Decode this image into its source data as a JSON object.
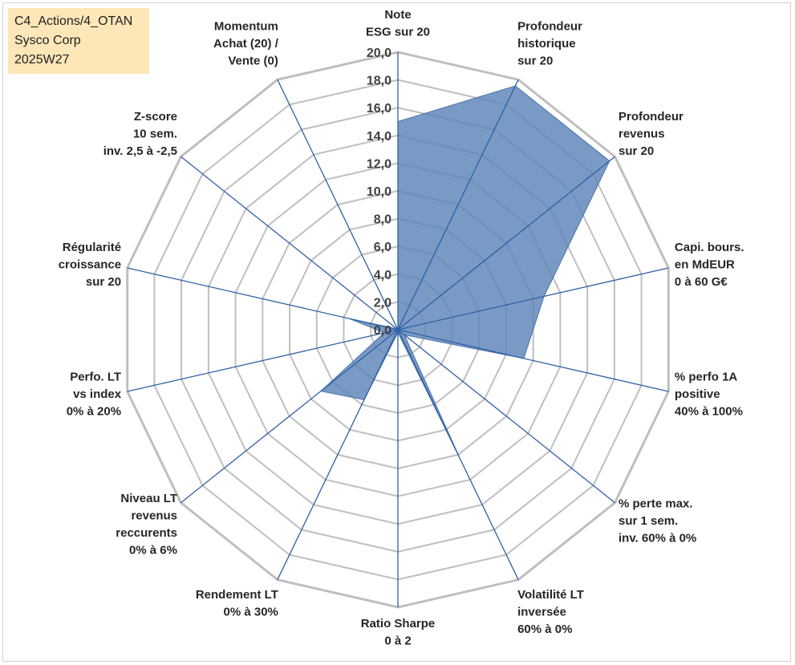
{
  "header": {
    "lines": [
      "C4_Actions/4_OTAN",
      "Sysco Corp",
      "2025W27"
    ]
  },
  "colors": {
    "fill": "#5b84b8",
    "fill_stroke": "#4a74ab",
    "spoke": "#2f5fa7",
    "grid": "#bfbfbf",
    "info_background": "#fde6b8"
  },
  "chart_data": {
    "type": "radar",
    "title": "",
    "rlim": [
      0,
      20
    ],
    "tick_step": 2,
    "tick_labels": [
      "0,0",
      "2,0",
      "4,0",
      "6,0",
      "8,0",
      "10,0",
      "12,0",
      "14,0",
      "16,0",
      "18,0",
      "20,0"
    ],
    "grid": true,
    "axes": [
      [
        "Note",
        "ESG sur 20"
      ],
      [
        "Profondeur",
        "historique",
        "sur 20"
      ],
      [
        "Profondeur",
        "revenus",
        "sur 20"
      ],
      [
        "Capi. bours.",
        "en MdEUR",
        "0 à 60 G€"
      ],
      [
        "% perfo 1A",
        "positive",
        "40% à 100%"
      ],
      [
        "% perte max.",
        "sur 1 sem.",
        "inv. 60% à 0%"
      ],
      [
        "Volatilité LT",
        "inversée",
        "60% à 0%"
      ],
      [
        "Ratio Sharpe",
        "0 à 2"
      ],
      [
        "Rendement LT",
        "0% à 30%"
      ],
      [
        "Niveau LT",
        "revenus",
        "reccurents",
        "0% à 6%"
      ],
      [
        "Perfo. LT",
        "vs index",
        "0% à 20%"
      ],
      [
        "Régularité",
        "croissance",
        "sur 20"
      ],
      [
        "Z-score",
        "10 sem.",
        "inv. 2,5 à -2,5"
      ],
      [
        "Momentum",
        "Achat (20) /",
        "Vente (0)"
      ]
    ],
    "series": [
      {
        "values": [
          15.0,
          19.5,
          19.5,
          10.8,
          9.3,
          0.6,
          10.4,
          0.2,
          5.6,
          7.1,
          1.0,
          3.6,
          0.1,
          0.0
        ]
      }
    ]
  }
}
